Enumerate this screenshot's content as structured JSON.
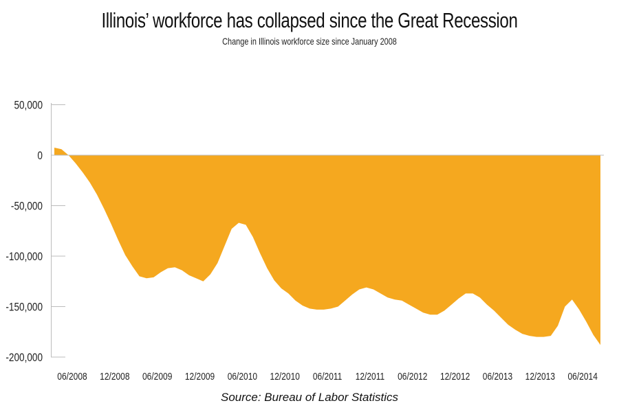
{
  "title": "Illinois’ workforce has collapsed since the Great Recession",
  "subtitle": "Change in Illinois workforce size since January 2008",
  "source": "Source: Bureau of Labor Statistics",
  "colors": {
    "area": "#F5A81F",
    "axis": "#BBBBBB",
    "text": "#222222"
  },
  "chart_data": {
    "type": "area",
    "title": "Illinois’ workforce has collapsed since the Great Recession",
    "subtitle": "Change in Illinois workforce size since January 2008",
    "xlabel": "",
    "ylabel": "",
    "ylim": [
      -200000,
      50000
    ],
    "grid": false,
    "legend": null,
    "y_ticks": [
      50000,
      0,
      -50000,
      -100000,
      -150000,
      -200000
    ],
    "y_tick_labels": [
      "50,000",
      "0",
      "-50,000",
      "-100,000",
      "-150,000",
      "-200,000"
    ],
    "x_tick_labels": [
      "06/2008",
      "12/2008",
      "06/2009",
      "12/2009",
      "06/2010",
      "12/2010",
      "06/2011",
      "12/2011",
      "06/2012",
      "12/2012",
      "06/2013",
      "12/2013",
      "06/2014"
    ],
    "x_start": "01/2008",
    "x_end": "07/2014",
    "series": [
      {
        "name": "Change in workforce size",
        "values": [
          7500,
          6000,
          0,
          -8000,
          -17000,
          -27000,
          -39000,
          -53000,
          -68000,
          -84000,
          -99000,
          -110000,
          -120000,
          -122000,
          -121000,
          -116000,
          -112000,
          -111000,
          -114000,
          -119000,
          -122000,
          -125000,
          -118000,
          -107000,
          -90000,
          -73000,
          -67000,
          -69000,
          -81000,
          -97000,
          -112000,
          -124000,
          -132000,
          -137000,
          -144000,
          -149000,
          -152000,
          -153000,
          -153000,
          -152000,
          -150000,
          -144000,
          -138000,
          -133000,
          -131000,
          -133000,
          -137000,
          -141000,
          -143000,
          -144000,
          -148000,
          -152000,
          -156000,
          -158000,
          -158000,
          -154000,
          -148000,
          -142000,
          -137000,
          -137000,
          -141000,
          -148000,
          -154000,
          -161000,
          -168000,
          -173000,
          -177000,
          -179000,
          -180000,
          -180000,
          -179000,
          -169000,
          -150000,
          -143000,
          -153000,
          -165000,
          -178000,
          -188000
        ]
      }
    ]
  }
}
